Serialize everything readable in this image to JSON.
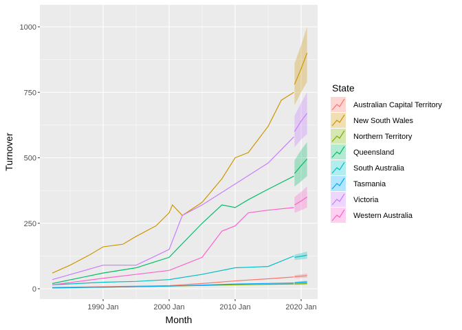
{
  "chart_data": {
    "type": "line",
    "xlabel": "Month",
    "ylabel": "Turnover",
    "legend_title": "State",
    "legend_position": "right",
    "grid": true,
    "xlim": [
      1981.5,
      2021.5
    ],
    "ylim": [
      -30,
      1080
    ],
    "x_ticks": [
      {
        "v": 1990,
        "label": "1990 Jan"
      },
      {
        "v": 2000,
        "label": "2000 Jan"
      },
      {
        "v": 2010,
        "label": "2010 Jan"
      },
      {
        "v": 2020,
        "label": "2020 Jan"
      }
    ],
    "y_ticks": [
      0,
      250,
      500,
      750,
      1000
    ],
    "forecast_note": "",
    "series": [
      {
        "name": "Australian Capital Territory",
        "color": "#F8766D",
        "x": [
          1982.3,
          1990,
          2000,
          2005,
          2010,
          2015,
          2018.9
        ],
        "y": [
          5,
          8,
          12,
          20,
          30,
          38,
          45
        ],
        "forecast": {
          "x": [
            2019,
            2020,
            2020.9
          ],
          "mean": [
            46,
            48,
            50
          ],
          "lower": [
            40,
            41,
            42
          ],
          "upper": [
            52,
            55,
            58
          ]
        }
      },
      {
        "name": "New South Wales",
        "color": "#CD9600",
        "x": [
          1982.3,
          1985,
          1988,
          1990,
          1993,
          1995,
          1998,
          2000,
          2000.5,
          2002,
          2005,
          2008,
          2010,
          2012,
          2015,
          2017,
          2018.9
        ],
        "y": [
          60,
          90,
          130,
          160,
          170,
          200,
          240,
          290,
          320,
          280,
          330,
          420,
          500,
          520,
          620,
          720,
          750
        ],
        "forecast": {
          "x": [
            2019,
            2020,
            2020.9
          ],
          "mean": [
            780,
            840,
            900
          ],
          "lower": [
            700,
            750,
            790
          ],
          "upper": [
            860,
            930,
            1000
          ]
        }
      },
      {
        "name": "Northern Territory",
        "color": "#7CAE00",
        "x": [
          1982.3,
          1990,
          2000,
          2010,
          2018.9
        ],
        "y": [
          3,
          6,
          10,
          15,
          18
        ],
        "forecast": {
          "x": [
            2019,
            2020,
            2020.9
          ],
          "mean": [
            18,
            19,
            20
          ],
          "lower": [
            15,
            15,
            15
          ],
          "upper": [
            21,
            23,
            25
          ]
        }
      },
      {
        "name": "Queensland",
        "color": "#00BE67",
        "x": [
          1982.3,
          1990,
          1995,
          2000,
          2005,
          2008,
          2010,
          2012,
          2015,
          2018.9
        ],
        "y": [
          20,
          60,
          80,
          120,
          250,
          320,
          310,
          340,
          380,
          430
        ],
        "forecast": {
          "x": [
            2019,
            2020,
            2020.9
          ],
          "mean": [
            440,
            470,
            495
          ],
          "lower": [
            390,
            410,
            430
          ],
          "upper": [
            490,
            530,
            560
          ]
        }
      },
      {
        "name": "South Australia",
        "color": "#00BFC4",
        "x": [
          1982.3,
          1990,
          1995,
          2000,
          2005,
          2010,
          2015,
          2018.9
        ],
        "y": [
          15,
          25,
          28,
          35,
          55,
          80,
          85,
          125
        ],
        "forecast": {
          "x": [
            2019,
            2020,
            2020.9
          ],
          "mean": [
            120,
            124,
            128
          ],
          "lower": [
            110,
            112,
            115
          ],
          "upper": [
            130,
            136,
            142
          ]
        }
      },
      {
        "name": "Tasmania",
        "color": "#00A9FF",
        "x": [
          1982.3,
          1990,
          2000,
          2010,
          2018.9
        ],
        "y": [
          3,
          6,
          10,
          18,
          22
        ],
        "forecast": {
          "x": [
            2019,
            2020,
            2020.9
          ],
          "mean": [
            23,
            25,
            26
          ],
          "lower": [
            20,
            21,
            21
          ],
          "upper": [
            26,
            29,
            31
          ]
        }
      },
      {
        "name": "Victoria",
        "color": "#C77CFF",
        "x": [
          1982.3,
          1990,
          1995,
          2000,
          2002,
          2005,
          2010,
          2015,
          2018.9
        ],
        "y": [
          35,
          90,
          90,
          150,
          280,
          320,
          400,
          480,
          580
        ],
        "forecast": {
          "x": [
            2019,
            2020,
            2020.9
          ],
          "mean": [
            600,
            640,
            670
          ],
          "lower": [
            540,
            570,
            590
          ],
          "upper": [
            660,
            710,
            750
          ]
        }
      },
      {
        "name": "Western Australia",
        "color": "#FF61CC",
        "x": [
          1982.3,
          1990,
          1995,
          2000,
          2005,
          2008,
          2010,
          2012,
          2015,
          2018.9
        ],
        "y": [
          15,
          40,
          55,
          70,
          120,
          220,
          240,
          290,
          300,
          310
        ],
        "forecast": {
          "x": [
            2019,
            2020,
            2020.9
          ],
          "mean": [
            320,
            335,
            350
          ],
          "lower": [
            290,
            300,
            310
          ],
          "upper": [
            350,
            370,
            390
          ]
        }
      }
    ]
  }
}
